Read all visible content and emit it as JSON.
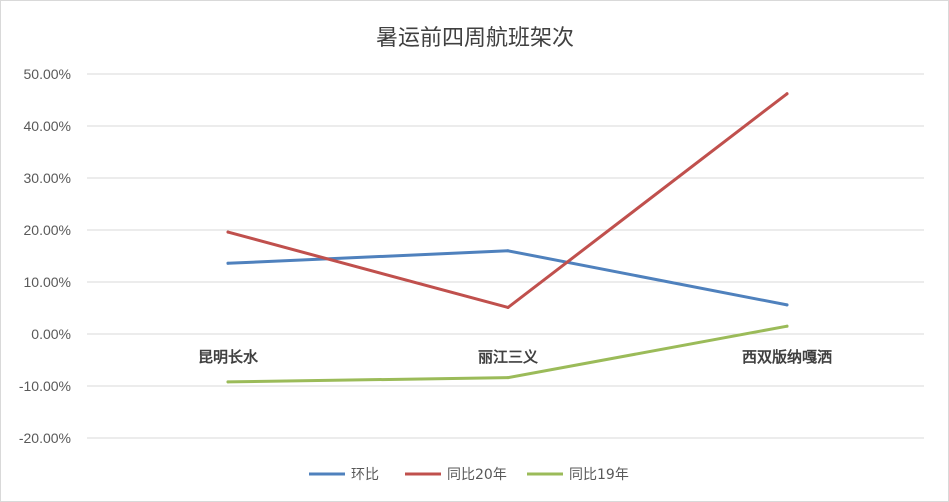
{
  "chart_data": {
    "type": "line",
    "title": "暑运前四周航班架次",
    "xlabel": "",
    "ylabel": "",
    "categories": [
      "昆明长水",
      "丽江三义",
      "西双版纳嘎洒"
    ],
    "ylim": [
      -0.2,
      0.5
    ],
    "yticks": [
      0.5,
      0.4,
      0.3,
      0.2,
      0.1,
      0.0,
      -0.1,
      -0.2
    ],
    "ytick_labels": [
      "50.00%",
      "40.00%",
      "30.00%",
      "20.00%",
      "10.00%",
      "0.00%",
      "-10.00%",
      "-20.00%"
    ],
    "grid": true,
    "legend_position": "bottom",
    "series": [
      {
        "name": "环比",
        "color": "#4f81bd",
        "values": [
          0.136,
          0.16,
          0.056
        ]
      },
      {
        "name": "同比20年",
        "color": "#c0504d",
        "values": [
          0.196,
          0.051,
          0.462
        ]
      },
      {
        "name": "同比19年",
        "color": "#9bbb59",
        "values": [
          -0.092,
          -0.084,
          0.015
        ]
      }
    ]
  }
}
